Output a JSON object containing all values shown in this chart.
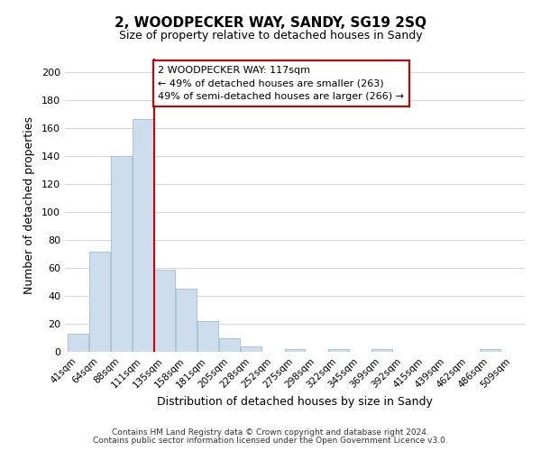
{
  "title": "2, WOODPECKER WAY, SANDY, SG19 2SQ",
  "subtitle": "Size of property relative to detached houses in Sandy",
  "xlabel": "Distribution of detached houses by size in Sandy",
  "ylabel": "Number of detached properties",
  "bar_color": "#ccdded",
  "bar_edge_color": "#aac4d8",
  "categories": [
    "41sqm",
    "64sqm",
    "88sqm",
    "111sqm",
    "135sqm",
    "158sqm",
    "181sqm",
    "205sqm",
    "228sqm",
    "252sqm",
    "275sqm",
    "298sqm",
    "322sqm",
    "345sqm",
    "369sqm",
    "392sqm",
    "415sqm",
    "439sqm",
    "462sqm",
    "486sqm",
    "509sqm"
  ],
  "values": [
    13,
    72,
    140,
    167,
    59,
    45,
    22,
    10,
    4,
    0,
    2,
    0,
    2,
    0,
    2,
    0,
    0,
    0,
    0,
    2,
    0
  ],
  "vline_x": 3.5,
  "vline_color": "#cc0000",
  "annotation_title": "2 WOODPECKER WAY: 117sqm",
  "annotation_line1": "← 49% of detached houses are smaller (263)",
  "annotation_line2": "49% of semi-detached houses are larger (266) →",
  "annotation_box_color": "#ffffff",
  "annotation_box_edge": "#cc0000",
  "ylim": [
    0,
    210
  ],
  "yticks": [
    0,
    20,
    40,
    60,
    80,
    100,
    120,
    140,
    160,
    180,
    200
  ],
  "footer1": "Contains HM Land Registry data © Crown copyright and database right 2024.",
  "footer2": "Contains public sector information licensed under the Open Government Licence v3.0.",
  "background_color": "#ffffff",
  "grid_color": "#d0d8e8"
}
